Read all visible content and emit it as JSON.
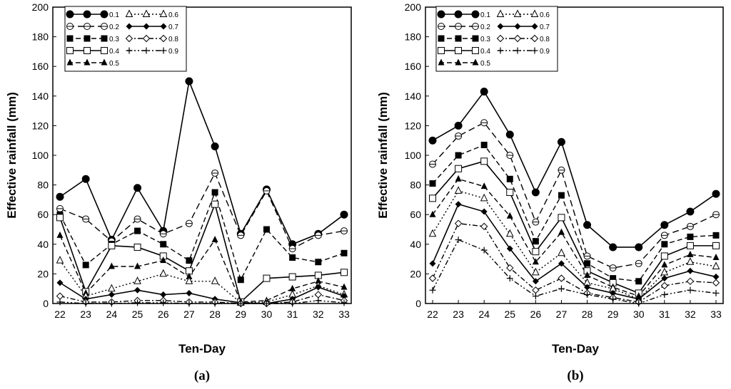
{
  "chart_data": [
    {
      "type": "line",
      "panel_label": "(a)",
      "panel_letter": "a",
      "xlabel": "Ten-Day",
      "ylabel": "Effective rainfall (mm)",
      "x": [
        22,
        23,
        24,
        25,
        26,
        27,
        28,
        29,
        30,
        31,
        32,
        33
      ],
      "xlim": [
        22,
        33
      ],
      "ylim": [
        0,
        200
      ],
      "yticks": [
        0,
        20,
        40,
        60,
        80,
        100,
        120,
        140,
        160,
        180,
        200
      ],
      "legend_position": "top-left",
      "series": [
        {
          "name": "0.1",
          "values": [
            72,
            84,
            43,
            78,
            49,
            150,
            106,
            47,
            77,
            40,
            47,
            60
          ]
        },
        {
          "name": "0.2",
          "values": [
            64,
            57,
            42,
            57,
            47,
            54,
            88,
            46,
            76,
            37,
            46,
            49
          ]
        },
        {
          "name": "0.3",
          "values": [
            60,
            26,
            40,
            49,
            40,
            29,
            75,
            16,
            50,
            31,
            28,
            34
          ]
        },
        {
          "name": "0.4",
          "values": [
            58,
            8,
            39,
            38,
            32,
            22,
            67,
            1,
            17,
            18,
            19,
            21
          ]
        },
        {
          "name": "0.5",
          "values": [
            46,
            7,
            25,
            25,
            29,
            18,
            43,
            1,
            2,
            10,
            15,
            11
          ]
        },
        {
          "name": "0.6",
          "values": [
            29,
            5,
            10,
            15,
            20,
            15,
            15,
            0.5,
            1,
            6,
            12,
            6
          ]
        },
        {
          "name": "0.7",
          "values": [
            14,
            3,
            6,
            9,
            6,
            7,
            3,
            0.5,
            0,
            3,
            11,
            5
          ]
        },
        {
          "name": "0.8",
          "values": [
            5,
            1,
            1,
            2,
            2,
            1,
            1,
            0,
            0,
            1,
            6,
            2
          ]
        },
        {
          "name": "0.9",
          "values": [
            1,
            0,
            0,
            0.5,
            0.5,
            0,
            0,
            0,
            0,
            0,
            2,
            0.5
          ]
        }
      ]
    },
    {
      "type": "line",
      "panel_label": "(b)",
      "panel_letter": "b",
      "xlabel": "Ten-Day",
      "ylabel": "Effective rainfall (mm)",
      "x": [
        22,
        23,
        24,
        25,
        26,
        27,
        28,
        29,
        30,
        31,
        32,
        33
      ],
      "xlim": [
        22,
        33
      ],
      "ylim": [
        0,
        200
      ],
      "yticks": [
        0,
        20,
        40,
        60,
        80,
        100,
        120,
        140,
        160,
        180,
        200
      ],
      "legend_position": "top-left",
      "series": [
        {
          "name": "0.1",
          "values": [
            110,
            120,
            143,
            114,
            75,
            109,
            53,
            38,
            38,
            53,
            62,
            74
          ]
        },
        {
          "name": "0.2",
          "values": [
            94,
            113,
            122,
            100,
            55,
            90,
            32,
            24,
            27,
            46,
            52,
            60
          ]
        },
        {
          "name": "0.3",
          "values": [
            81,
            100,
            107,
            84,
            42,
            73,
            27,
            17,
            15,
            40,
            45,
            46
          ]
        },
        {
          "name": "0.4",
          "values": [
            71,
            91,
            96,
            75,
            35,
            58,
            22,
            14,
            7,
            32,
            39,
            39
          ]
        },
        {
          "name": "0.5",
          "values": [
            60,
            84,
            79,
            59,
            28,
            48,
            19,
            11,
            5,
            26,
            33,
            31
          ]
        },
        {
          "name": "0.6",
          "values": [
            47,
            76,
            71,
            47,
            21,
            34,
            14,
            10,
            3,
            21,
            28,
            25
          ]
        },
        {
          "name": "0.7",
          "values": [
            27,
            67,
            62,
            37,
            15,
            27,
            11,
            7,
            3,
            17,
            22,
            18
          ]
        },
        {
          "name": "0.8",
          "values": [
            17,
            54,
            52,
            24,
            9,
            17,
            7,
            4,
            1,
            12,
            15,
            14
          ]
        },
        {
          "name": "0.9",
          "values": [
            9,
            43,
            36,
            17,
            5,
            10,
            6,
            3,
            0,
            6,
            9,
            7
          ]
        }
      ]
    }
  ],
  "series_styles": {
    "0.1": {
      "marker": "filled-circle",
      "dash": "solid"
    },
    "0.2": {
      "marker": "open-circle-bar",
      "dash": "long-dash"
    },
    "0.3": {
      "marker": "filled-square",
      "dash": "dash"
    },
    "0.4": {
      "marker": "open-square",
      "dash": "solid"
    },
    "0.5": {
      "marker": "filled-triangle",
      "dash": "dash"
    },
    "0.6": {
      "marker": "open-triangle",
      "dash": "dot"
    },
    "0.7": {
      "marker": "filled-diamond",
      "dash": "solid"
    },
    "0.8": {
      "marker": "open-diamond",
      "dash": "dash-dot"
    },
    "0.9": {
      "marker": "plus",
      "dash": "dash-dot-dot"
    }
  },
  "colors": {
    "line": "#000000",
    "background": "#ffffff"
  }
}
